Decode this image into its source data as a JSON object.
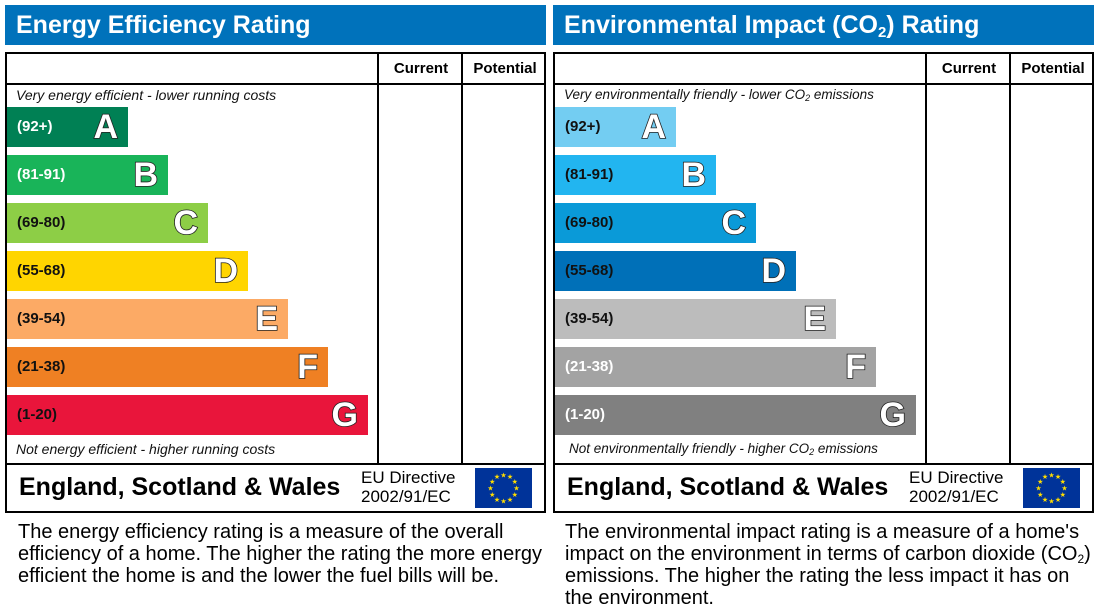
{
  "chart_data": [
    {
      "type": "bar",
      "title": "Energy Efficiency Rating",
      "columns": [
        "Current",
        "Potential"
      ],
      "top_note": "Very energy efficient - lower running costs",
      "bottom_note": "Not energy efficient - higher running costs",
      "categories": [
        "A",
        "B",
        "C",
        "D",
        "E",
        "F",
        "G"
      ],
      "ranges": [
        "(92+)",
        "(81-91)",
        "(69-80)",
        "(55-68)",
        "(39-54)",
        "(21-38)",
        "(1-20)"
      ],
      "colors": [
        "#008054",
        "#19b459",
        "#8dce46",
        "#ffd500",
        "#fcaa65",
        "#ef8023",
        "#e9153b"
      ],
      "label_colors": [
        "#ffffff",
        "#ffffff",
        "#111111",
        "#111111",
        "#111111",
        "#111111",
        "#111111"
      ],
      "current": null,
      "potential": null,
      "footer": {
        "region": "England, Scotland & Wales",
        "directive_line1": "EU Directive",
        "directive_line2": "2002/91/EC"
      },
      "description": "The energy efficiency rating is a measure of the overall efficiency of a home. The higher the rating the more energy efficient the home is and the lower the fuel bills will be."
    },
    {
      "type": "bar",
      "title_pre": "Environmental Impact (CO",
      "title_sub": "2",
      "title_post": ") Rating",
      "columns": [
        "Current",
        "Potential"
      ],
      "top_note_pre": "Very environmentally friendly - lower CO",
      "top_note_sub": "2",
      "top_note_post": " emissions",
      "bottom_note_pre": "Not environmentally friendly - higher CO",
      "bottom_note_sub": "2",
      "bottom_note_post": " emissions",
      "categories": [
        "A",
        "B",
        "C",
        "D",
        "E",
        "F",
        "G"
      ],
      "ranges": [
        "(92+)",
        "(81-91)",
        "(69-80)",
        "(55-68)",
        "(39-54)",
        "(21-38)",
        "(1-20)"
      ],
      "colors": [
        "#73cdf2",
        "#22b5f0",
        "#0a9ad8",
        "#0070b8",
        "#bcbcbc",
        "#a3a3a3",
        "#808080"
      ],
      "label_colors": [
        "#111111",
        "#111111",
        "#111111",
        "#111111",
        "#111111",
        "#ffffff",
        "#ffffff"
      ],
      "current": null,
      "potential": null,
      "footer": {
        "region": "England, Scotland & Wales",
        "directive_line1": "EU Directive",
        "directive_line2": "2002/91/EC"
      },
      "description_pre": "The environmental impact rating is a measure of a home's impact on the environment in terms of carbon dioxide (CO",
      "description_sub": "2",
      "description_post": ") emissions. The higher the rating the less impact it has on the environment."
    }
  ]
}
